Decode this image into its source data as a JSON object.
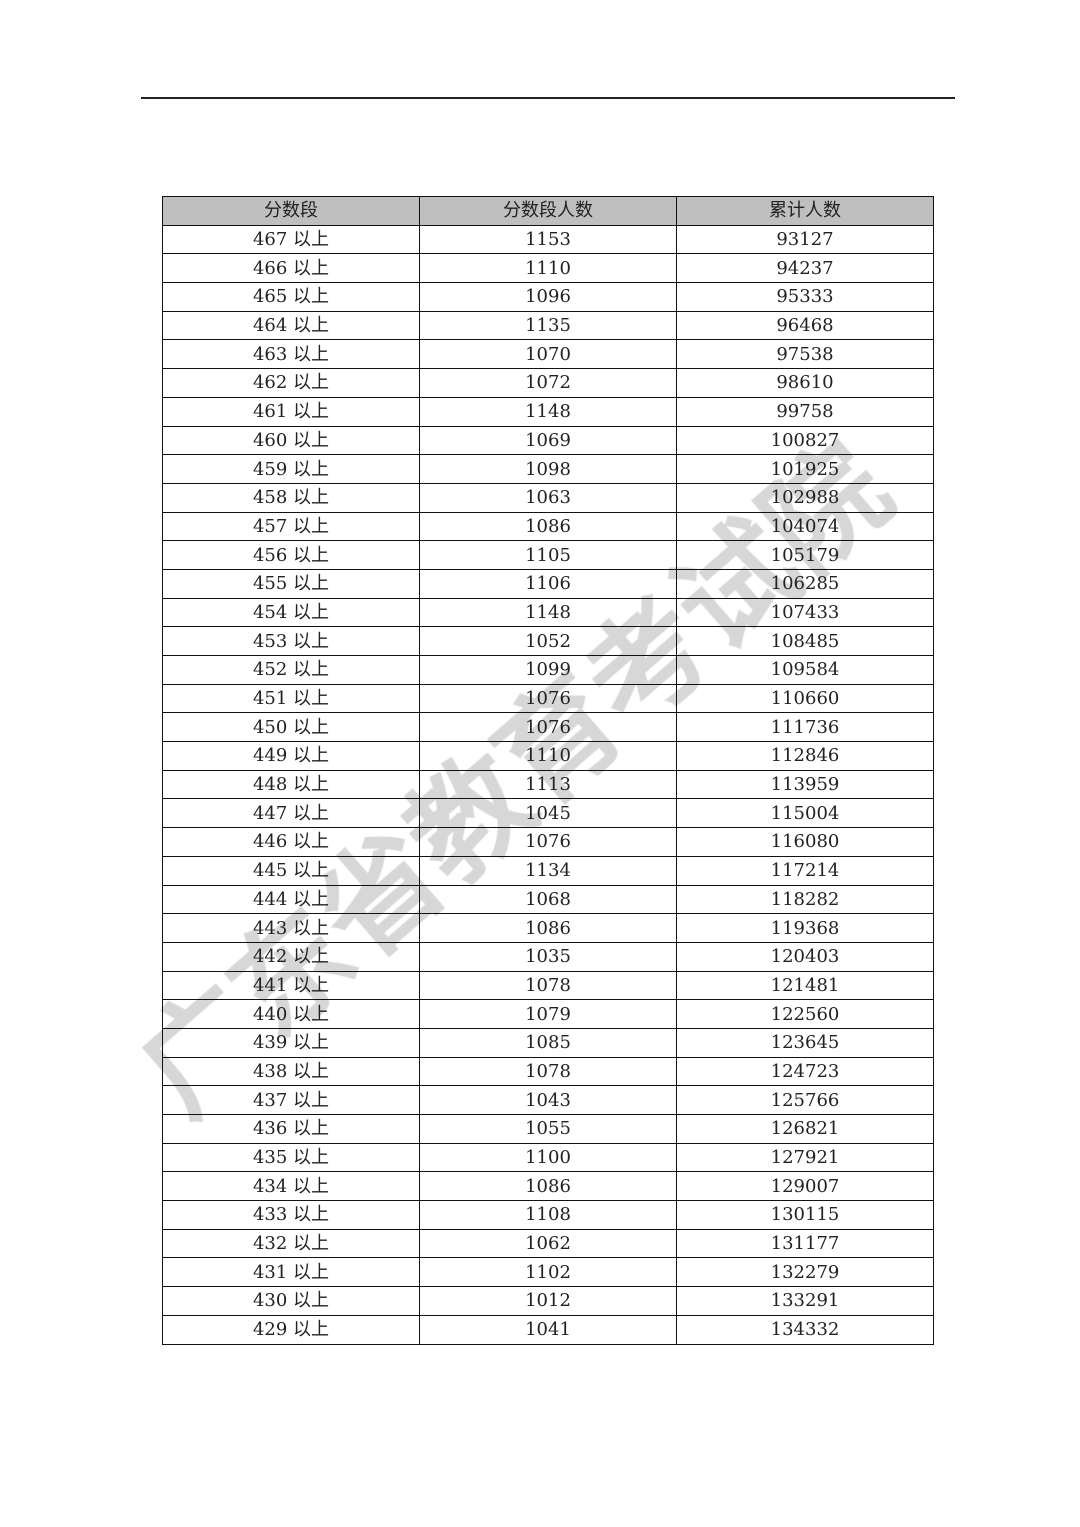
{
  "watermark": "广东省教育考试院",
  "table": {
    "headers": [
      "分数段",
      "分数段人数",
      "累计人数"
    ],
    "rows": [
      [
        "467 以上",
        "1153",
        "93127"
      ],
      [
        "466 以上",
        "1110",
        "94237"
      ],
      [
        "465 以上",
        "1096",
        "95333"
      ],
      [
        "464 以上",
        "1135",
        "96468"
      ],
      [
        "463 以上",
        "1070",
        "97538"
      ],
      [
        "462 以上",
        "1072",
        "98610"
      ],
      [
        "461 以上",
        "1148",
        "99758"
      ],
      [
        "460 以上",
        "1069",
        "100827"
      ],
      [
        "459 以上",
        "1098",
        "101925"
      ],
      [
        "458 以上",
        "1063",
        "102988"
      ],
      [
        "457 以上",
        "1086",
        "104074"
      ],
      [
        "456 以上",
        "1105",
        "105179"
      ],
      [
        "455 以上",
        "1106",
        "106285"
      ],
      [
        "454 以上",
        "1148",
        "107433"
      ],
      [
        "453 以上",
        "1052",
        "108485"
      ],
      [
        "452 以上",
        "1099",
        "109584"
      ],
      [
        "451 以上",
        "1076",
        "110660"
      ],
      [
        "450 以上",
        "1076",
        "111736"
      ],
      [
        "449 以上",
        "1110",
        "112846"
      ],
      [
        "448 以上",
        "1113",
        "113959"
      ],
      [
        "447 以上",
        "1045",
        "115004"
      ],
      [
        "446 以上",
        "1076",
        "116080"
      ],
      [
        "445 以上",
        "1134",
        "117214"
      ],
      [
        "444 以上",
        "1068",
        "118282"
      ],
      [
        "443 以上",
        "1086",
        "119368"
      ],
      [
        "442 以上",
        "1035",
        "120403"
      ],
      [
        "441 以上",
        "1078",
        "121481"
      ],
      [
        "440 以上",
        "1079",
        "122560"
      ],
      [
        "439 以上",
        "1085",
        "123645"
      ],
      [
        "438 以上",
        "1078",
        "124723"
      ],
      [
        "437 以上",
        "1043",
        "125766"
      ],
      [
        "436 以上",
        "1055",
        "126821"
      ],
      [
        "435 以上",
        "1100",
        "127921"
      ],
      [
        "434 以上",
        "1086",
        "129007"
      ],
      [
        "433 以上",
        "1108",
        "130115"
      ],
      [
        "432 以上",
        "1062",
        "131177"
      ],
      [
        "431 以上",
        "1102",
        "132279"
      ],
      [
        "430 以上",
        "1012",
        "133291"
      ],
      [
        "429 以上",
        "1041",
        "134332"
      ]
    ]
  }
}
